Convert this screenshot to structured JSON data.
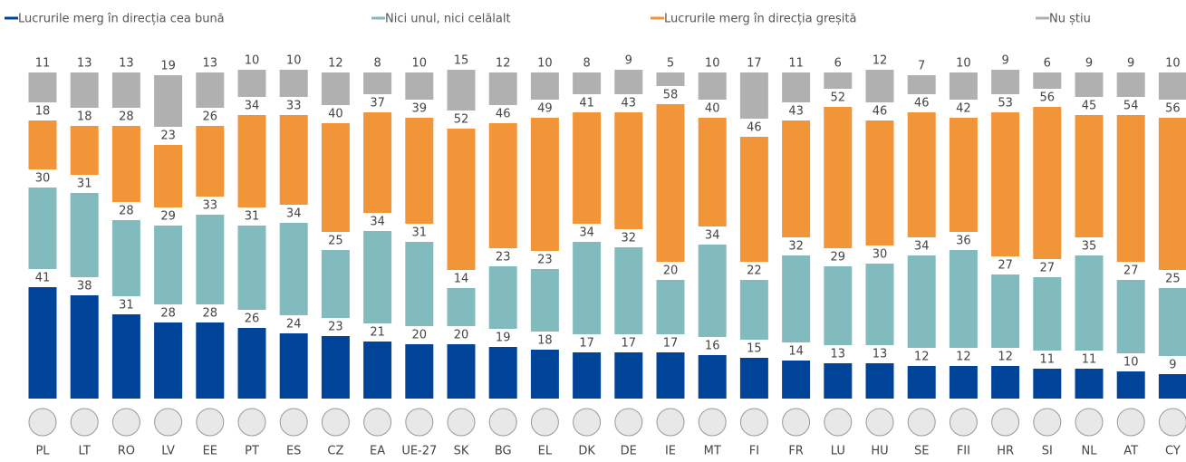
{
  "chart_data": {
    "type": "bar",
    "stacked": true,
    "categories": [
      "PL",
      "LT",
      "RO",
      "LV",
      "EE",
      "PT",
      "ES",
      "CZ",
      "EA",
      "UE-27",
      "SK",
      "BG",
      "EL",
      "DK",
      "DE",
      "IE",
      "MT",
      "FI",
      "FR",
      "LU",
      "HU",
      "SE",
      "FII",
      "HR",
      "SI",
      "NL",
      "AT",
      "CY"
    ],
    "series": [
      {
        "name": "Lucrurile merg în direcția cea bună",
        "color": "#00449a",
        "values": [
          41,
          38,
          31,
          28,
          28,
          26,
          24,
          23,
          21,
          20,
          20,
          19,
          18,
          17,
          17,
          17,
          16,
          15,
          14,
          13,
          13,
          12,
          12,
          12,
          11,
          11,
          10,
          9
        ]
      },
      {
        "name": "Nici unul, nici celălalt",
        "color": "#82bbbd",
        "values": [
          30,
          31,
          28,
          29,
          33,
          31,
          34,
          25,
          34,
          31,
          14,
          23,
          23,
          34,
          32,
          20,
          34,
          22,
          32,
          29,
          30,
          34,
          36,
          27,
          27,
          35,
          27,
          25
        ]
      },
      {
        "name": "Lucrurile merg în direcția greșită",
        "color": "#f29539",
        "values": [
          18,
          18,
          28,
          23,
          26,
          34,
          33,
          40,
          37,
          39,
          52,
          46,
          49,
          41,
          43,
          58,
          40,
          46,
          43,
          52,
          46,
          46,
          42,
          53,
          56,
          45,
          54,
          56
        ]
      },
      {
        "name": "Nu știu",
        "color": "#b0b0b0",
        "values": [
          11,
          13,
          13,
          19,
          13,
          10,
          10,
          12,
          8,
          10,
          15,
          12,
          10,
          8,
          9,
          5,
          10,
          17,
          11,
          6,
          12,
          7,
          10,
          9,
          6,
          9,
          9,
          10
        ]
      }
    ]
  }
}
